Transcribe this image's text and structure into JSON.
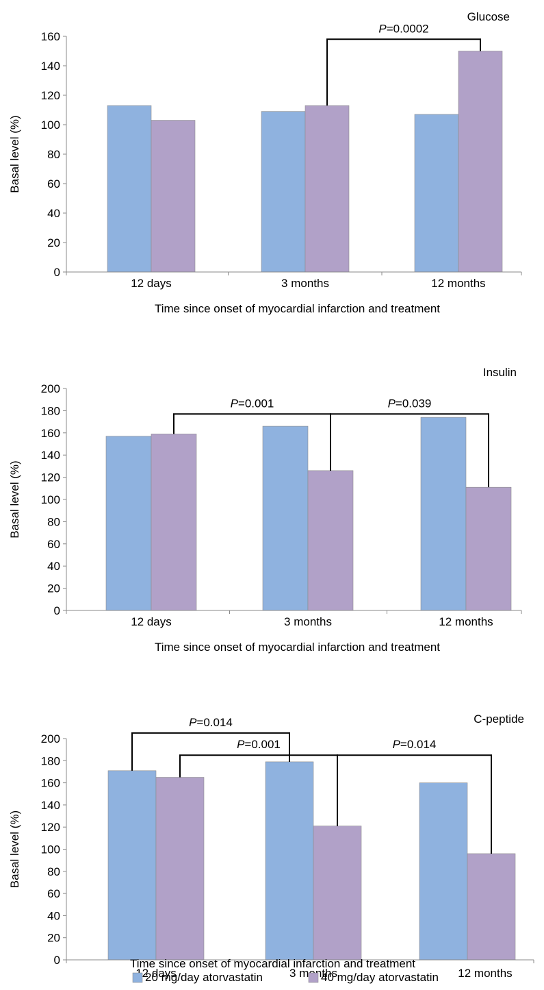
{
  "chart_data": [
    {
      "type": "bar",
      "title": "Glucose",
      "xlabel": "Time since onset of myocardial infarction and treatment",
      "ylabel": "Basal level (%)",
      "categories": [
        "12 days",
        "3 months",
        "12 months"
      ],
      "ylim": [
        0,
        160
      ],
      "yticks": [
        "0",
        "20",
        "40",
        "60",
        "80",
        "100",
        "120",
        "140",
        "160"
      ],
      "grid": false,
      "series": [
        {
          "name": "20 mg/day atorvastatin",
          "color": "#8fb2df",
          "values": [
            113,
            109,
            107
          ]
        },
        {
          "name": "40 mg/day atorvastatin",
          "color": "#b1a1c8",
          "values": [
            103,
            113,
            150
          ]
        }
      ],
      "annotations": [
        {
          "p_prefix": "P",
          "p_value": "=0.0002",
          "from": {
            "category": 1,
            "series": 1
          },
          "to": {
            "category": 2,
            "series": 1
          },
          "bracket_level": 158
        }
      ]
    },
    {
      "type": "bar",
      "title": "Insulin",
      "xlabel": "Time since onset of myocardial infarction and treatment",
      "ylabel": "Basal level (%)",
      "categories": [
        "12 days",
        "3 months",
        "12 months"
      ],
      "ylim": [
        0,
        200
      ],
      "yticks": [
        "0",
        "20",
        "40",
        "60",
        "80",
        "100",
        "120",
        "140",
        "160",
        "180",
        "200"
      ],
      "grid": false,
      "series": [
        {
          "name": "20 mg/day atorvastatin",
          "color": "#8fb2df",
          "values": [
            157,
            166,
            174
          ]
        },
        {
          "name": "40 mg/day atorvastatin",
          "color": "#b1a1c8",
          "values": [
            159,
            126,
            111
          ]
        }
      ],
      "annotations": [
        {
          "p_prefix": "P",
          "p_value": "=0.001",
          "from": {
            "category": 0,
            "series": 1
          },
          "to": {
            "category": 1,
            "series": 1
          },
          "bracket_level": 177
        },
        {
          "p_prefix": "P",
          "p_value": "=0.039",
          "from": {
            "category": 1,
            "series": 1
          },
          "to": {
            "category": 2,
            "series": 1
          },
          "bracket_level": 177
        }
      ]
    },
    {
      "type": "bar",
      "title": "C-peptide",
      "xlabel": "Time since onset of myocardial infarction and treatment",
      "ylabel": "Basal level (%)",
      "categories": [
        "12 days",
        "3 months",
        "12 months"
      ],
      "ylim": [
        0,
        200
      ],
      "yticks": [
        "0",
        "20",
        "40",
        "60",
        "80",
        "100",
        "120",
        "140",
        "160",
        "180",
        "200"
      ],
      "grid": false,
      "series": [
        {
          "name": "20 mg/day atorvastatin",
          "color": "#8fb2df",
          "values": [
            171,
            179,
            160
          ]
        },
        {
          "name": "40 mg/day atorvastatin",
          "color": "#b1a1c8",
          "values": [
            165,
            121,
            96
          ]
        }
      ],
      "annotations": [
        {
          "p_prefix": "P",
          "p_value": "=0.014",
          "from": {
            "category": 0,
            "series": 0
          },
          "to": {
            "category": 1,
            "series": 0
          },
          "bracket_level": 205
        },
        {
          "p_prefix": "P",
          "p_value": "=0.001",
          "from": {
            "category": 0,
            "series": 1
          },
          "to": {
            "category": 1,
            "series": 1
          },
          "bracket_level": 185
        },
        {
          "p_prefix": "P",
          "p_value": "=0.014",
          "from": {
            "category": 1,
            "series": 1
          },
          "to": {
            "category": 2,
            "series": 1
          },
          "bracket_level": 185
        }
      ]
    }
  ],
  "legend": {
    "placement": "bottom",
    "items": [
      {
        "label": "20 mg/day atorvastatin",
        "color": "#8fb2df"
      },
      {
        "label": "40 mg/day atorvastatin",
        "color": "#b1a1c8"
      }
    ]
  }
}
